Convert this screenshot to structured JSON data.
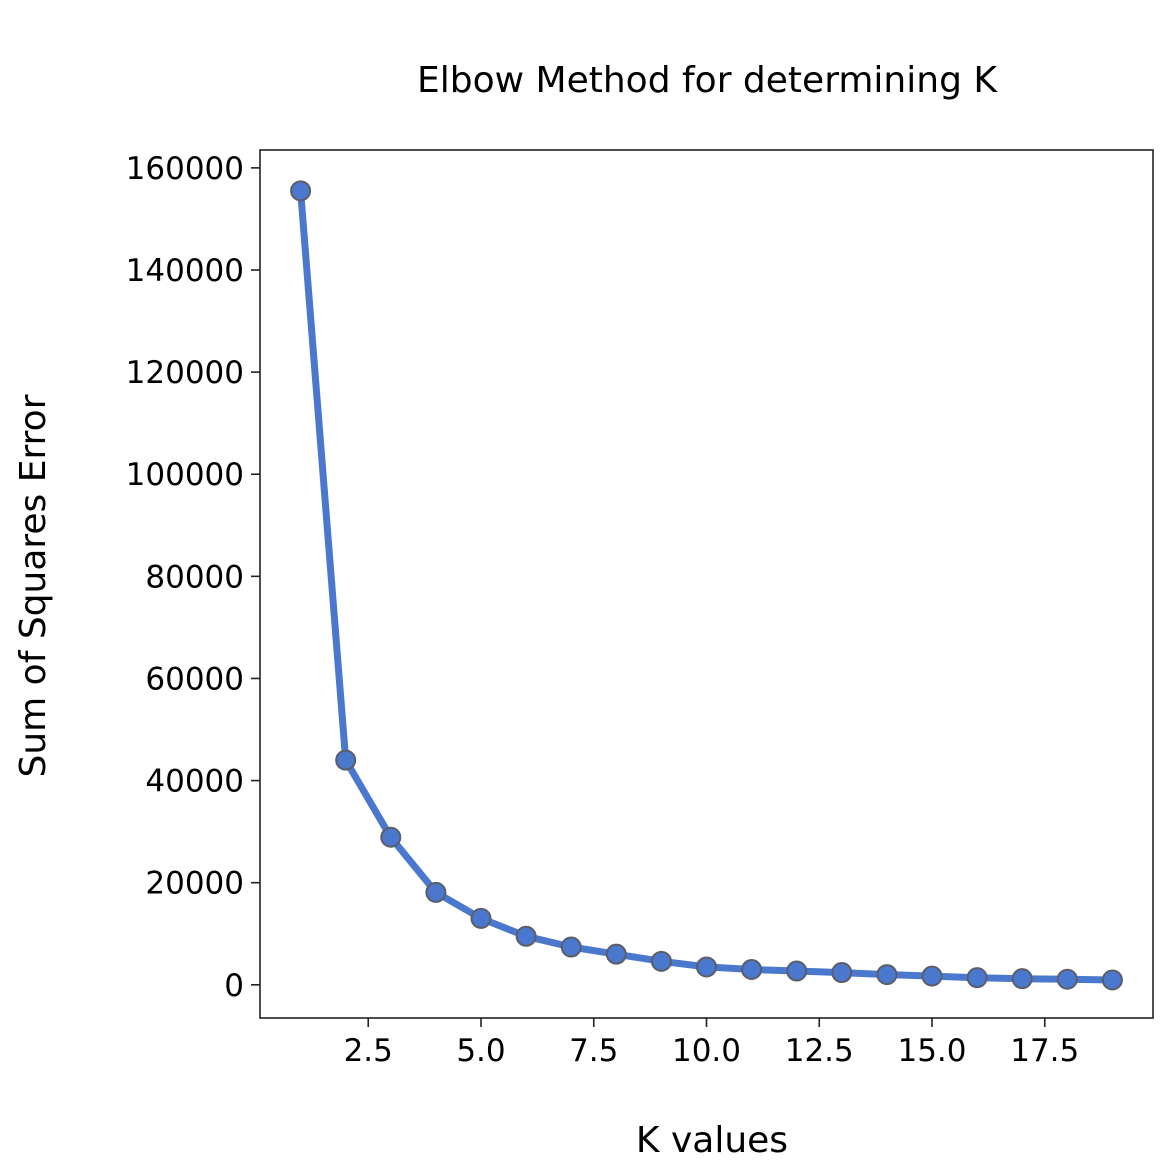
{
  "chart_data": {
    "type": "line",
    "title": "Elbow Method for determining K",
    "xlabel": "K values",
    "ylabel": "Sum of Squares Error",
    "xlim": [
      0.1,
      19.9
    ],
    "ylim": [
      -6500,
      163500
    ],
    "x_ticks": [
      2.5,
      5.0,
      7.5,
      10.0,
      12.5,
      15.0,
      17.5
    ],
    "x_tick_labels": [
      "2.5",
      "5.0",
      "7.5",
      "10.0",
      "12.5",
      "15.0",
      "17.5"
    ],
    "y_ticks": [
      0,
      20000,
      40000,
      60000,
      80000,
      100000,
      120000,
      140000,
      160000
    ],
    "y_tick_labels": [
      "0",
      "20000",
      "40000",
      "60000",
      "80000",
      "100000",
      "120000",
      "140000",
      "160000"
    ],
    "grid": false,
    "series": [
      {
        "color": "#4a78cf",
        "marker_edge_color": "#5b5e66",
        "x": [
          1,
          2,
          3,
          4,
          5,
          6,
          7,
          8,
          9,
          10,
          11,
          12,
          13,
          14,
          15,
          16,
          17,
          18,
          19
        ],
        "values": [
          155500,
          44000,
          28900,
          18100,
          13000,
          9500,
          7400,
          6000,
          4600,
          3500,
          3000,
          2700,
          2400,
          2000,
          1700,
          1400,
          1200,
          1100,
          950
        ]
      }
    ]
  }
}
